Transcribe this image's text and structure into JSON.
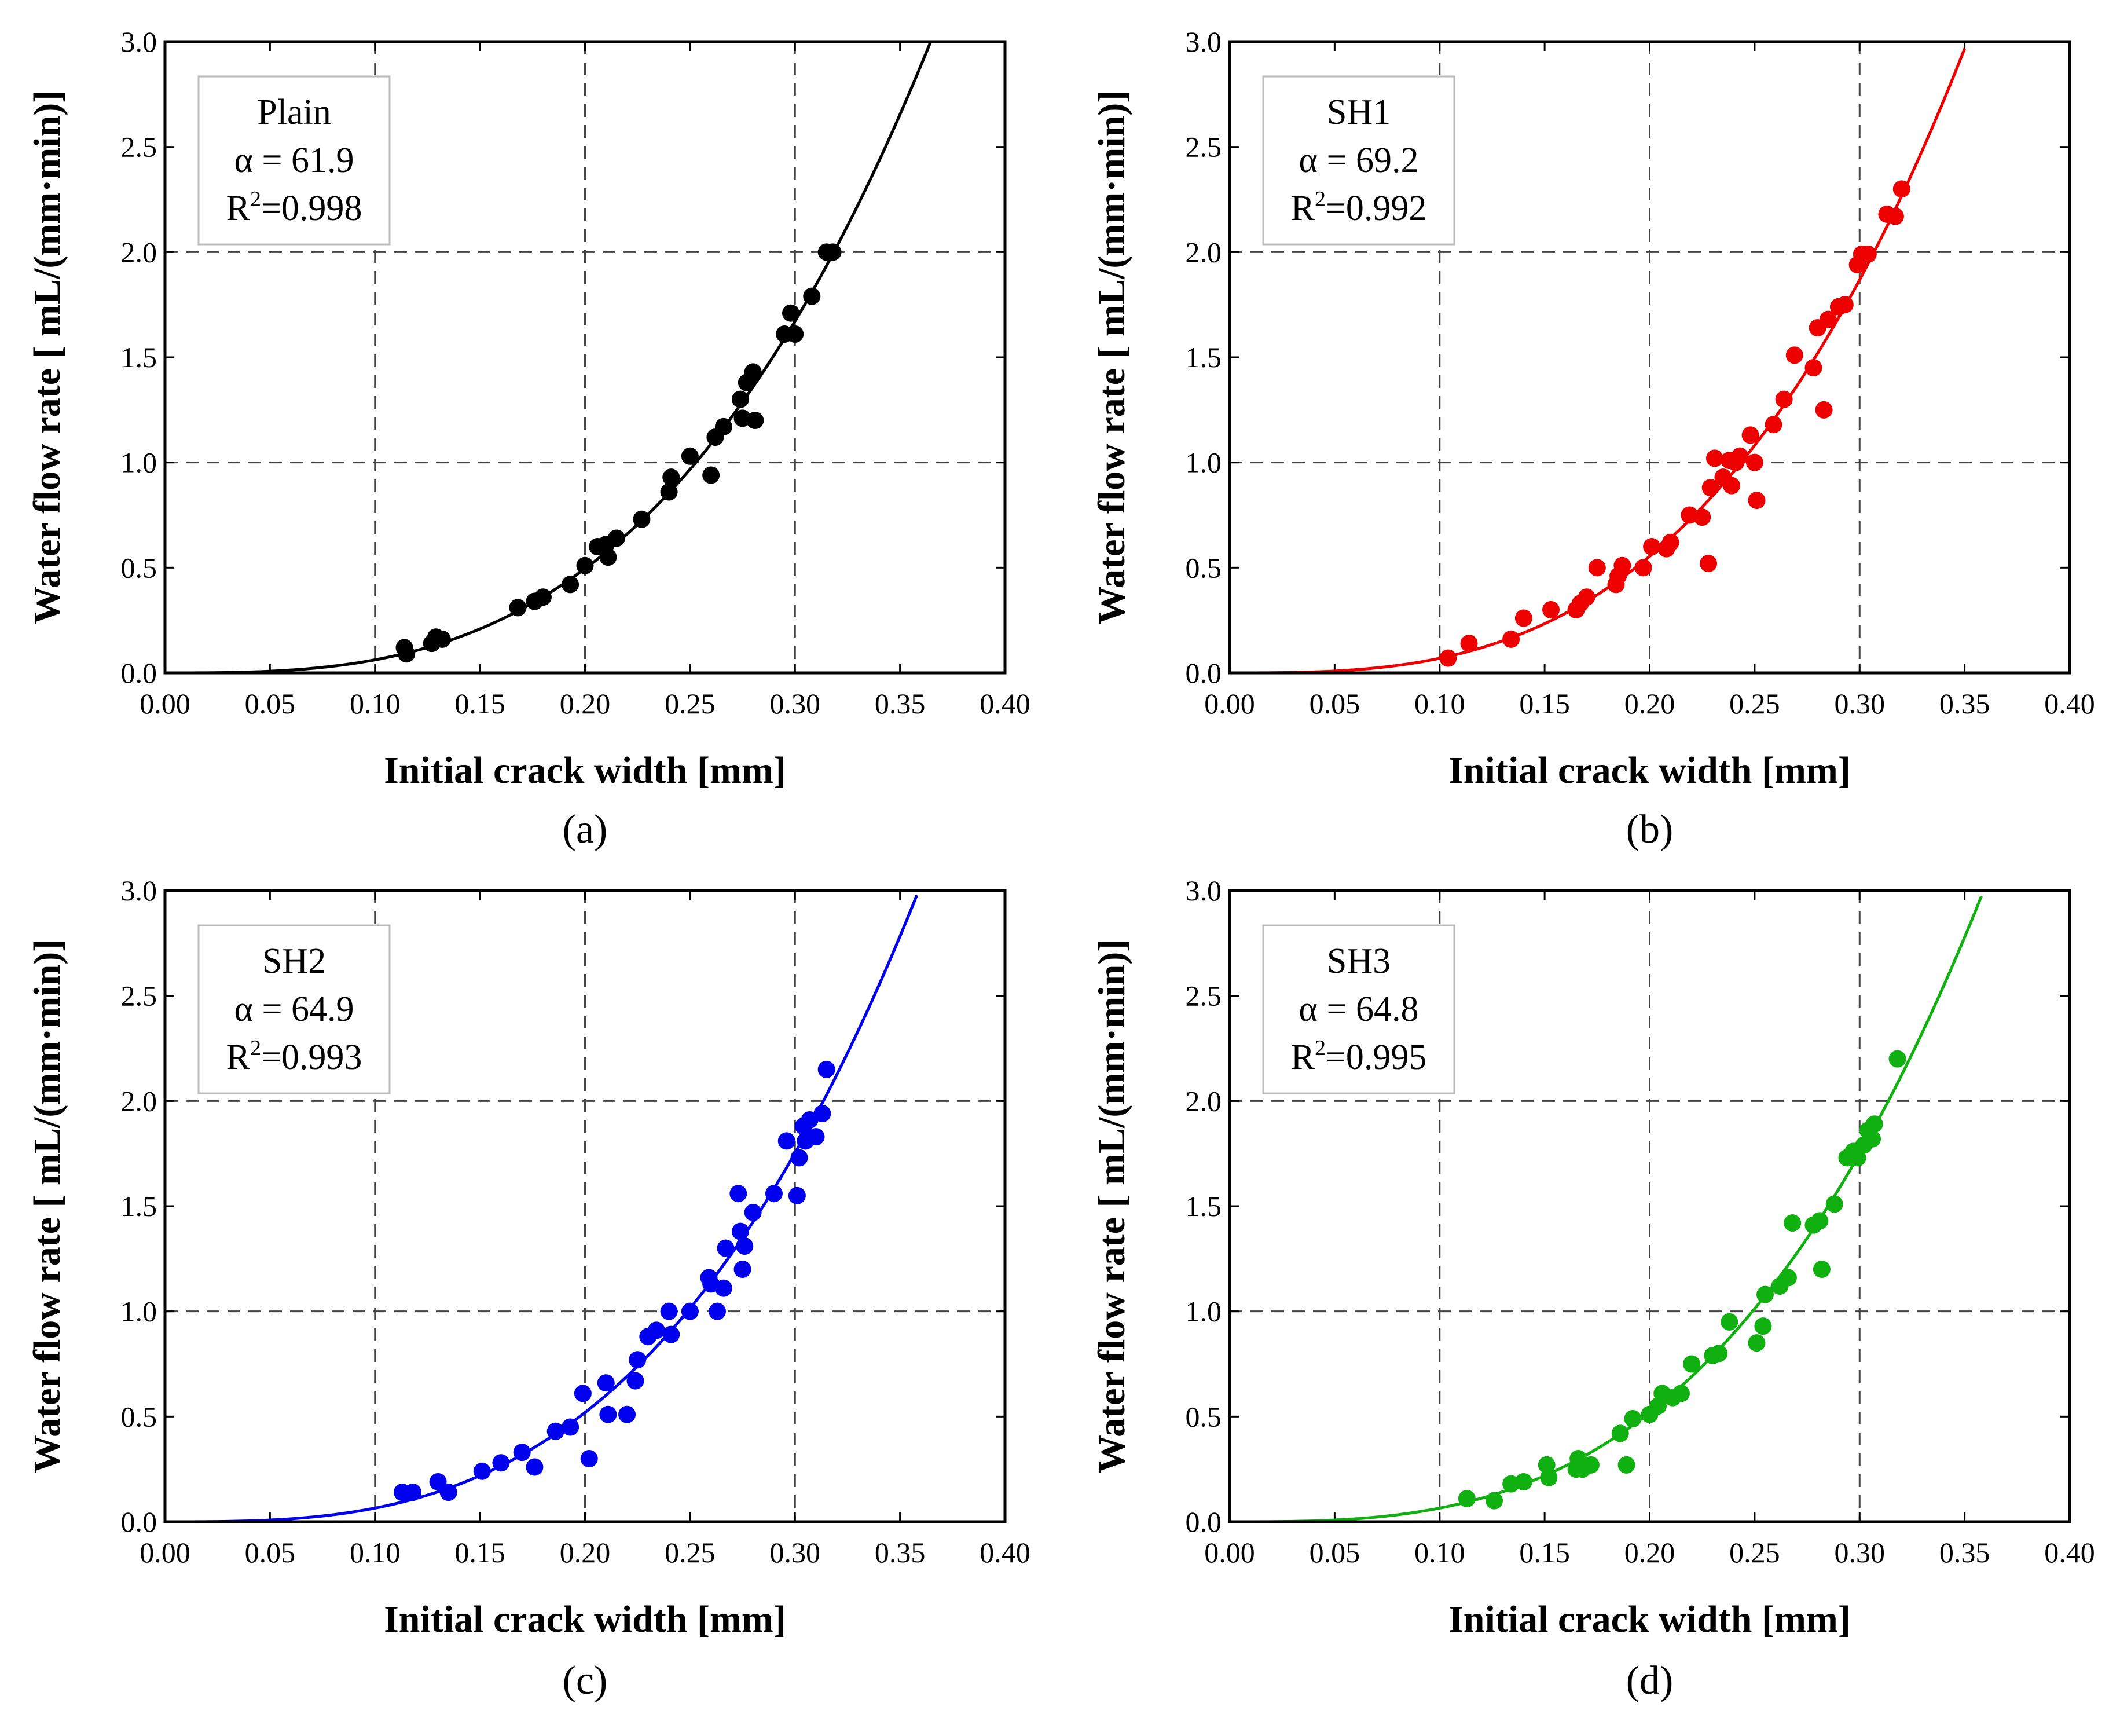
{
  "figure": {
    "panel_labels": [
      "(a)",
      "(b)",
      "(c)",
      "(d)"
    ]
  },
  "chart_data": [
    {
      "type": "scatter",
      "panel": "a",
      "panel_letter": "a",
      "xlabel": "Initial crack width [mm]",
      "ylabel": "Water flow rate [ mL/(mm·min)]",
      "xlim": [
        0.0,
        0.4
      ],
      "ylim": [
        0.0,
        3.0
      ],
      "xticks": [
        "0.00",
        "0.05",
        "0.10",
        "0.15",
        "0.20",
        "0.25",
        "0.30",
        "0.35",
        "0.40"
      ],
      "yticks": [
        "0.0",
        "0.5",
        "1.0",
        "1.5",
        "2.0",
        "2.5",
        "3.0"
      ],
      "grid_x": [
        0.1,
        0.2,
        0.3
      ],
      "grid_y": [
        1.0,
        2.0
      ],
      "color": "#000000",
      "legend": {
        "name": "Plain",
        "alpha_text": "α = 61.9",
        "r2_prefix": "R",
        "r2_sup": "2",
        "r2_value": "=0.998"
      },
      "fit": {
        "model": "power",
        "coefficient": 61.9,
        "exponent": 3,
        "x_range": [
          0.0,
          0.4
        ]
      },
      "points": [
        [
          0.114,
          0.12
        ],
        [
          0.115,
          0.09
        ],
        [
          0.127,
          0.14
        ],
        [
          0.129,
          0.17
        ],
        [
          0.132,
          0.16
        ],
        [
          0.168,
          0.31
        ],
        [
          0.176,
          0.34
        ],
        [
          0.18,
          0.36
        ],
        [
          0.193,
          0.42
        ],
        [
          0.2,
          0.51
        ],
        [
          0.206,
          0.6
        ],
        [
          0.21,
          0.61
        ],
        [
          0.211,
          0.55
        ],
        [
          0.215,
          0.64
        ],
        [
          0.227,
          0.73
        ],
        [
          0.24,
          0.86
        ],
        [
          0.241,
          0.93
        ],
        [
          0.25,
          1.03
        ],
        [
          0.26,
          0.94
        ],
        [
          0.262,
          1.12
        ],
        [
          0.266,
          1.17
        ],
        [
          0.274,
          1.3
        ],
        [
          0.275,
          1.21
        ],
        [
          0.277,
          1.38
        ],
        [
          0.28,
          1.43
        ],
        [
          0.281,
          1.2
        ],
        [
          0.295,
          1.61
        ],
        [
          0.298,
          1.71
        ],
        [
          0.3,
          1.61
        ],
        [
          0.308,
          1.79
        ],
        [
          0.315,
          2.0
        ],
        [
          0.318,
          2.0
        ]
      ]
    },
    {
      "type": "scatter",
      "panel": "b",
      "panel_letter": "b",
      "xlabel": "Initial crack width [mm]",
      "ylabel": "Water flow rate [ mL/(mm·min)]",
      "xlim": [
        0.0,
        0.4
      ],
      "ylim": [
        0.0,
        3.0
      ],
      "xticks": [
        "0.00",
        "0.05",
        "0.10",
        "0.15",
        "0.20",
        "0.25",
        "0.30",
        "0.35",
        "0.40"
      ],
      "yticks": [
        "0.0",
        "0.5",
        "1.0",
        "1.5",
        "2.0",
        "2.5",
        "3.0"
      ],
      "grid_x": [
        0.1,
        0.2,
        0.3
      ],
      "grid_y": [
        1.0,
        2.0
      ],
      "color": "#ee0000",
      "legend": {
        "name": "SH1",
        "alpha_text": "α = 69.2",
        "r2_prefix": "R",
        "r2_sup": "2",
        "r2_value": "=0.992"
      },
      "fit": {
        "model": "power",
        "coefficient": 69.2,
        "exponent": 3,
        "x_range": [
          0.0,
          0.35
        ]
      },
      "points": [
        [
          0.104,
          0.07
        ],
        [
          0.114,
          0.14
        ],
        [
          0.134,
          0.16
        ],
        [
          0.14,
          0.26
        ],
        [
          0.153,
          0.3
        ],
        [
          0.165,
          0.3
        ],
        [
          0.167,
          0.33
        ],
        [
          0.17,
          0.36
        ],
        [
          0.175,
          0.5
        ],
        [
          0.184,
          0.42
        ],
        [
          0.185,
          0.46
        ],
        [
          0.187,
          0.51
        ],
        [
          0.197,
          0.5
        ],
        [
          0.201,
          0.6
        ],
        [
          0.208,
          0.59
        ],
        [
          0.21,
          0.62
        ],
        [
          0.219,
          0.75
        ],
        [
          0.225,
          0.74
        ],
        [
          0.228,
          0.52
        ],
        [
          0.229,
          0.88
        ],
        [
          0.231,
          1.02
        ],
        [
          0.235,
          0.93
        ],
        [
          0.238,
          1.01
        ],
        [
          0.239,
          0.89
        ],
        [
          0.241,
          1.0
        ],
        [
          0.243,
          1.03
        ],
        [
          0.248,
          1.13
        ],
        [
          0.25,
          1.0
        ],
        [
          0.251,
          0.82
        ],
        [
          0.259,
          1.18
        ],
        [
          0.264,
          1.3
        ],
        [
          0.269,
          1.51
        ],
        [
          0.278,
          1.45
        ],
        [
          0.28,
          1.64
        ],
        [
          0.283,
          1.25
        ],
        [
          0.285,
          1.68
        ],
        [
          0.29,
          1.74
        ],
        [
          0.293,
          1.75
        ],
        [
          0.299,
          1.94
        ],
        [
          0.301,
          1.99
        ],
        [
          0.304,
          1.99
        ],
        [
          0.313,
          2.18
        ],
        [
          0.317,
          2.17
        ],
        [
          0.32,
          2.3
        ]
      ]
    },
    {
      "type": "scatter",
      "panel": "c",
      "panel_letter": "c",
      "xlabel": "Initial crack width [mm]",
      "ylabel": "Water flow rate [ mL/(mm·min)]",
      "xlim": [
        0.0,
        0.4
      ],
      "ylim": [
        0.0,
        3.0
      ],
      "xticks": [
        "0.00",
        "0.05",
        "0.10",
        "0.15",
        "0.20",
        "0.25",
        "0.30",
        "0.35",
        "0.40"
      ],
      "yticks": [
        "0.0",
        "0.5",
        "1.0",
        "1.5",
        "2.0",
        "2.5",
        "3.0"
      ],
      "grid_x": [
        0.1,
        0.2,
        0.3
      ],
      "grid_y": [
        1.0,
        2.0
      ],
      "color": "#0000ee",
      "legend": {
        "name": "SH2",
        "alpha_text": "α = 64.9",
        "r2_prefix": "R",
        "r2_sup": "2",
        "r2_value": "=0.993"
      },
      "fit": {
        "model": "power",
        "coefficient": 64.9,
        "exponent": 3,
        "x_range": [
          0.0,
          0.358
        ]
      },
      "points": [
        [
          0.113,
          0.14
        ],
        [
          0.118,
          0.14
        ],
        [
          0.13,
          0.19
        ],
        [
          0.135,
          0.14
        ],
        [
          0.151,
          0.24
        ],
        [
          0.16,
          0.28
        ],
        [
          0.17,
          0.33
        ],
        [
          0.176,
          0.26
        ],
        [
          0.186,
          0.43
        ],
        [
          0.193,
          0.45
        ],
        [
          0.199,
          0.61
        ],
        [
          0.202,
          0.3
        ],
        [
          0.21,
          0.66
        ],
        [
          0.211,
          0.51
        ],
        [
          0.22,
          0.51
        ],
        [
          0.224,
          0.67
        ],
        [
          0.225,
          0.77
        ],
        [
          0.23,
          0.88
        ],
        [
          0.234,
          0.91
        ],
        [
          0.24,
          1.0
        ],
        [
          0.241,
          0.89
        ],
        [
          0.25,
          1.0
        ],
        [
          0.259,
          1.16
        ],
        [
          0.26,
          1.13
        ],
        [
          0.263,
          1.0
        ],
        [
          0.266,
          1.11
        ],
        [
          0.267,
          1.3
        ],
        [
          0.273,
          1.56
        ],
        [
          0.274,
          1.38
        ],
        [
          0.275,
          1.2
        ],
        [
          0.276,
          1.31
        ],
        [
          0.28,
          1.47
        ],
        [
          0.29,
          1.56
        ],
        [
          0.296,
          1.81
        ],
        [
          0.301,
          1.55
        ],
        [
          0.302,
          1.73
        ],
        [
          0.304,
          1.88
        ],
        [
          0.305,
          1.81
        ],
        [
          0.307,
          1.91
        ],
        [
          0.31,
          1.83
        ],
        [
          0.313,
          1.94
        ],
        [
          0.315,
          2.15
        ]
      ]
    },
    {
      "type": "scatter",
      "panel": "d",
      "panel_letter": "d",
      "xlabel": "Initial crack width [mm]",
      "ylabel": "Water flow rate [ mL/(mm·min)]",
      "xlim": [
        0.0,
        0.4
      ],
      "ylim": [
        0.0,
        3.0
      ],
      "xticks": [
        "0.00",
        "0.05",
        "0.10",
        "0.15",
        "0.20",
        "0.25",
        "0.30",
        "0.35",
        "0.40"
      ],
      "yticks": [
        "0.0",
        "0.5",
        "1.0",
        "1.5",
        "2.0",
        "2.5",
        "3.0"
      ],
      "grid_x": [
        0.1,
        0.2,
        0.3
      ],
      "grid_y": [
        1.0,
        2.0
      ],
      "color": "#10b010",
      "legend": {
        "name": "SH3",
        "alpha_text": "α = 64.8",
        "r2_prefix": "R",
        "r2_sup": "2",
        "r2_value": "=0.995"
      },
      "fit": {
        "model": "power",
        "coefficient": 64.8,
        "exponent": 3,
        "x_range": [
          0.0,
          0.358
        ]
      },
      "points": [
        [
          0.113,
          0.11
        ],
        [
          0.126,
          0.1
        ],
        [
          0.134,
          0.18
        ],
        [
          0.14,
          0.19
        ],
        [
          0.151,
          0.27
        ],
        [
          0.152,
          0.21
        ],
        [
          0.165,
          0.25
        ],
        [
          0.166,
          0.3
        ],
        [
          0.168,
          0.25
        ],
        [
          0.172,
          0.27
        ],
        [
          0.186,
          0.42
        ],
        [
          0.189,
          0.27
        ],
        [
          0.192,
          0.49
        ],
        [
          0.2,
          0.51
        ],
        [
          0.204,
          0.55
        ],
        [
          0.206,
          0.61
        ],
        [
          0.211,
          0.59
        ],
        [
          0.215,
          0.61
        ],
        [
          0.22,
          0.75
        ],
        [
          0.23,
          0.79
        ],
        [
          0.233,
          0.8
        ],
        [
          0.238,
          0.95
        ],
        [
          0.251,
          0.85
        ],
        [
          0.254,
          0.93
        ],
        [
          0.255,
          1.08
        ],
        [
          0.262,
          1.12
        ],
        [
          0.266,
          1.16
        ],
        [
          0.268,
          1.42
        ],
        [
          0.278,
          1.41
        ],
        [
          0.281,
          1.43
        ],
        [
          0.282,
          1.2
        ],
        [
          0.288,
          1.51
        ],
        [
          0.294,
          1.73
        ],
        [
          0.297,
          1.76
        ],
        [
          0.299,
          1.73
        ],
        [
          0.302,
          1.79
        ],
        [
          0.304,
          1.86
        ],
        [
          0.306,
          1.82
        ],
        [
          0.307,
          1.89
        ],
        [
          0.318,
          2.2
        ]
      ]
    }
  ]
}
